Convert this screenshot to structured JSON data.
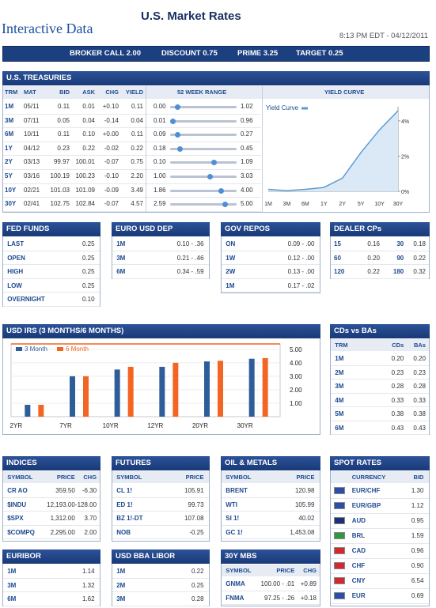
{
  "header": {
    "logo": "Interactive Data",
    "title": "U.S. Market Rates",
    "timestamp": "8:13 PM EDT - 04/12/2011"
  },
  "rates_bar": [
    "BROKER CALL 2.00",
    "DISCOUNT 0.75",
    "PRIME 3.25",
    "TARGET 0.25"
  ],
  "treasuries": {
    "title": "U.S. TREASURIES",
    "columns": [
      "TRM",
      "MAT",
      "BID",
      "ASK",
      "CHG",
      "YIELD",
      "52 WEEK RANGE",
      "YIELD CURVE"
    ],
    "rows": [
      [
        "1M",
        "05/11",
        "0.11",
        "0.01",
        "+0.10",
        "0.11",
        "0.00",
        "1.02"
      ],
      [
        "3M",
        "07/11",
        "0.05",
        "0.04",
        "-0.14",
        "0.04",
        "0.01",
        "0.96"
      ],
      [
        "6M",
        "10/11",
        "0.11",
        "0.10",
        "+0.00",
        "0.11",
        "0.09",
        "0.27"
      ],
      [
        "1Y",
        "04/12",
        "0.23",
        "0.22",
        "-0.02",
        "0.22",
        "0.18",
        "0.45"
      ],
      [
        "2Y",
        "03/13",
        "99.97",
        "100.01",
        "-0.07",
        "0.75",
        "0.10",
        "1.09"
      ],
      [
        "5Y",
        "03/16",
        "100.19",
        "100.23",
        "-0.10",
        "2.20",
        "1.00",
        "3.03"
      ],
      [
        "10Y",
        "02/21",
        "101.03",
        "101.09",
        "-0.09",
        "3.49",
        "1.86",
        "4.00"
      ],
      [
        "30Y",
        "02/41",
        "102.75",
        "102.84",
        "-0.07",
        "4.57",
        "2.59",
        "5.00"
      ]
    ],
    "yield_curve": {
      "type": "area",
      "legend": "Yield Curve",
      "color": "#5b9bd5",
      "categories": [
        "1M",
        "3M",
        "6M",
        "1Y",
        "2Y",
        "5Y",
        "10Y",
        "30Y"
      ],
      "values": [
        0.11,
        0.04,
        0.11,
        0.22,
        0.75,
        2.2,
        3.49,
        4.57
      ],
      "ylim": [
        0,
        4.8
      ],
      "yticks": [
        {
          "value": 4,
          "label": "4%"
        },
        {
          "value": 2,
          "label": "2%"
        },
        {
          "value": 0,
          "label": "0%"
        }
      ]
    }
  },
  "fed_funds": {
    "title": "FED FUNDS",
    "rows": [
      [
        "LAST",
        "0.25"
      ],
      [
        "OPEN",
        "0.25"
      ],
      [
        "HIGH",
        "0.25"
      ],
      [
        "LOW",
        "0.25"
      ],
      [
        "OVERNIGHT",
        "0.10"
      ]
    ]
  },
  "euro_usd_dep": {
    "title": "EURO USD DEP",
    "rows": [
      [
        "1M",
        "0.10 - .36"
      ],
      [
        "3M",
        "0.21 - .46"
      ],
      [
        "6M",
        "0.34 - .59"
      ]
    ]
  },
  "gov_repos": {
    "title": "GOV REPOS",
    "rows": [
      [
        "ON",
        "0.09 - .00"
      ],
      [
        "1W",
        "0.12 - .00"
      ],
      [
        "2W",
        "0.13 - .00"
      ],
      [
        "1M",
        "0.17 - .02"
      ]
    ]
  },
  "dealer_cps": {
    "title": "DEALER CPs",
    "rows": [
      [
        "15",
        "0.16",
        "30",
        "0.18"
      ],
      [
        "60",
        "0.20",
        "90",
        "0.22"
      ],
      [
        "120",
        "0.22",
        "180",
        "0.32"
      ]
    ]
  },
  "usd_irs": {
    "title": "USD IRS (3 MONTHS/6 MONTHS)",
    "chart": {
      "type": "bar",
      "categories": [
        "2YR",
        "7YR",
        "10YR",
        "12YR",
        "20YR",
        "30YR"
      ],
      "series": [
        {
          "name": "3 Month",
          "color": "#2e5d9a",
          "values": [
            0.88,
            3.0,
            3.5,
            3.7,
            4.1,
            4.3
          ]
        },
        {
          "name": "6 Month",
          "color": "#f26522",
          "values": [
            0.88,
            3.0,
            3.7,
            4.0,
            4.15,
            4.35
          ]
        }
      ],
      "ylim": [
        0,
        5.4
      ],
      "yticks": [
        {
          "value": 5,
          "label": "5.00"
        },
        {
          "value": 4,
          "label": "4.00"
        },
        {
          "value": 3,
          "label": "3.00"
        },
        {
          "value": 2,
          "label": "2.00"
        },
        {
          "value": 1,
          "label": "1.00"
        }
      ]
    }
  },
  "cds_vs_bas": {
    "title": "CDs vs BAs",
    "columns": [
      "TRM",
      "CDs",
      "BAs"
    ],
    "rows": [
      [
        "1M",
        "0.20",
        "0.20"
      ],
      [
        "2M",
        "0.23",
        "0.23"
      ],
      [
        "3M",
        "0.28",
        "0.28"
      ],
      [
        "4M",
        "0.33",
        "0.33"
      ],
      [
        "5M",
        "0.38",
        "0.38"
      ],
      [
        "6M",
        "0.43",
        "0.43"
      ]
    ]
  },
  "indices": {
    "title": "INDICES",
    "columns": [
      "SYMBOL",
      "PRICE",
      "CHG"
    ],
    "rows": [
      [
        "CR AO",
        "359.50",
        "-6.30"
      ],
      [
        "$INDU",
        "12,193.00",
        "-128.00"
      ],
      [
        "$SPX",
        "1,312.00",
        "3.70"
      ],
      [
        "$COMPQ",
        "2,295.00",
        "2.00"
      ]
    ]
  },
  "futures": {
    "title": "FUTURES",
    "columns": [
      "SYMBOL",
      "PRICE"
    ],
    "rows": [
      [
        "CL 1!",
        "105.91"
      ],
      [
        "ED 1!",
        "99.73"
      ],
      [
        "BZ 1!-DT",
        "107.08"
      ],
      [
        "NOB",
        "-0.25"
      ]
    ]
  },
  "oil_metals": {
    "title": "OIL & METALS",
    "columns": [
      "SYMBOL",
      "PRICE"
    ],
    "rows": [
      [
        "BRENT",
        "120.98"
      ],
      [
        "WTI",
        "105.99"
      ],
      [
        "SI 1!",
        "40.02"
      ],
      [
        "GC 1!",
        "1,453.08"
      ]
    ]
  },
  "spot_rates": {
    "title": "SPOT RATES",
    "columns": [
      "CURRENCY",
      "BID"
    ],
    "rows": [
      [
        "EUR/CHF",
        "1.30"
      ],
      [
        "EUR/GBP",
        "1.12"
      ],
      [
        "AUD",
        "0.95"
      ],
      [
        "BRL",
        "1.59"
      ],
      [
        "CAD",
        "0.96"
      ],
      [
        "CHF",
        "0.90"
      ],
      [
        "CNY",
        "6.54"
      ],
      [
        "EUR",
        "0.69"
      ]
    ]
  },
  "euribor": {
    "title": "EURIBOR",
    "rows": [
      [
        "1M",
        "1.14"
      ],
      [
        "3M",
        "1.32"
      ],
      [
        "6M",
        "1.62"
      ]
    ]
  },
  "usd_bba_libor": {
    "title": "USD BBA LIBOR",
    "rows": [
      [
        "1M",
        "0.22"
      ],
      [
        "2M",
        "0.25"
      ],
      [
        "3M",
        "0.28"
      ]
    ]
  },
  "mbs_30y": {
    "title": "30Y MBS",
    "columns": [
      "SYMBOL",
      "PRICE",
      "CHG"
    ],
    "rows": [
      [
        "GNMA",
        "100.00 - .01",
        "+0.89"
      ],
      [
        "FNMA",
        "97.25 - .26",
        "+0.18"
      ]
    ]
  }
}
